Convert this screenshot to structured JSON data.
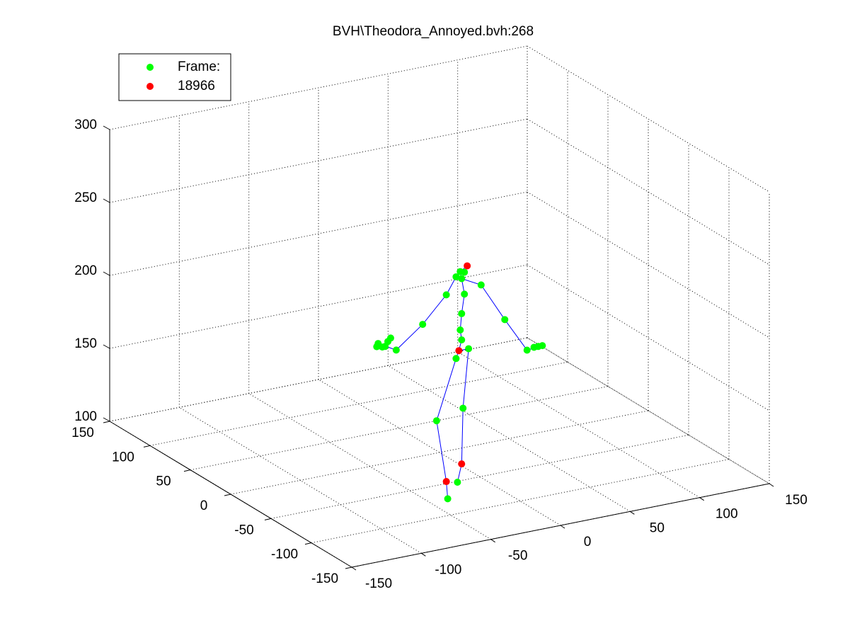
{
  "chart_data": {
    "type": "scatter3d",
    "title": "BVH\\Theodora_Annoyed.bvh:268",
    "xlim": [
      -150,
      150
    ],
    "ylim": [
      -150,
      150
    ],
    "zlim": [
      100,
      300
    ],
    "xticks": [
      -150,
      -100,
      -50,
      0,
      50,
      100,
      150
    ],
    "yticks": [
      -150,
      -100,
      -50,
      0,
      50,
      100,
      150
    ],
    "zticks": [
      100,
      150,
      200,
      250,
      300
    ],
    "grid": true,
    "legend": "top-left",
    "series": [
      {
        "name": "Frame:",
        "color": "#00ff00",
        "mode": "markers",
        "x": [
          -37,
          -30,
          -45,
          -26,
          -31,
          -22,
          -27,
          -28,
          -27,
          -25,
          -27,
          -28,
          -25,
          -31,
          -38,
          -55,
          -74,
          -87,
          -84,
          -80,
          -78,
          -82,
          -88,
          -13,
          4,
          20,
          25,
          28,
          31
        ],
        "y": [
          -74,
          -74,
          -74,
          -74,
          -74,
          -74,
          -74,
          -74,
          -74,
          -74,
          -74,
          -74,
          -74,
          -74,
          -74,
          -74,
          -74,
          -74,
          -74,
          -74,
          -74,
          -74,
          -74,
          -74,
          -74,
          -74,
          -74,
          -74,
          -74
        ],
        "z": [
          100,
          110,
          155,
          160,
          195,
          200,
          207,
          214,
          225,
          238,
          249,
          254,
          253,
          251,
          240,
          223,
          209,
          216,
          213,
          216,
          218,
          213,
          214,
          242,
          215,
          191,
          192,
          192,
          192
        ]
      },
      {
        "name": "18966",
        "color": "#ff0000",
        "mode": "markers",
        "x": [
          -38,
          -27,
          -29,
          -23
        ],
        "y": [
          -74,
          -74,
          -74,
          -74
        ],
        "z": [
          112,
          122,
          200,
          257
        ]
      },
      {
        "color": "#0000ff",
        "mode": "lines",
        "x": [
          -37,
          -38,
          -45,
          -31,
          -29,
          -22,
          -26,
          -27,
          -30,
          null,
          -29,
          -27,
          -28,
          -27,
          -25,
          -27,
          -28,
          -23,
          null,
          -87,
          -74,
          -55,
          -38,
          -31,
          -27,
          -13,
          4,
          20,
          31
        ],
        "y": [
          -74,
          -74,
          -74,
          -74,
          -74,
          -74,
          -74,
          -74,
          -74,
          null,
          -74,
          -74,
          -74,
          -74,
          -74,
          -74,
          -74,
          -74,
          null,
          -74,
          -74,
          -74,
          -74,
          -74,
          -74,
          -74,
          -74,
          -74,
          -74
        ],
        "z": [
          100,
          112,
          155,
          195,
          200,
          200,
          160,
          122,
          110,
          null,
          200,
          207,
          214,
          225,
          238,
          249,
          254,
          257,
          null,
          216,
          209,
          223,
          240,
          251,
          249,
          242,
          215,
          191,
          192
        ]
      }
    ]
  }
}
